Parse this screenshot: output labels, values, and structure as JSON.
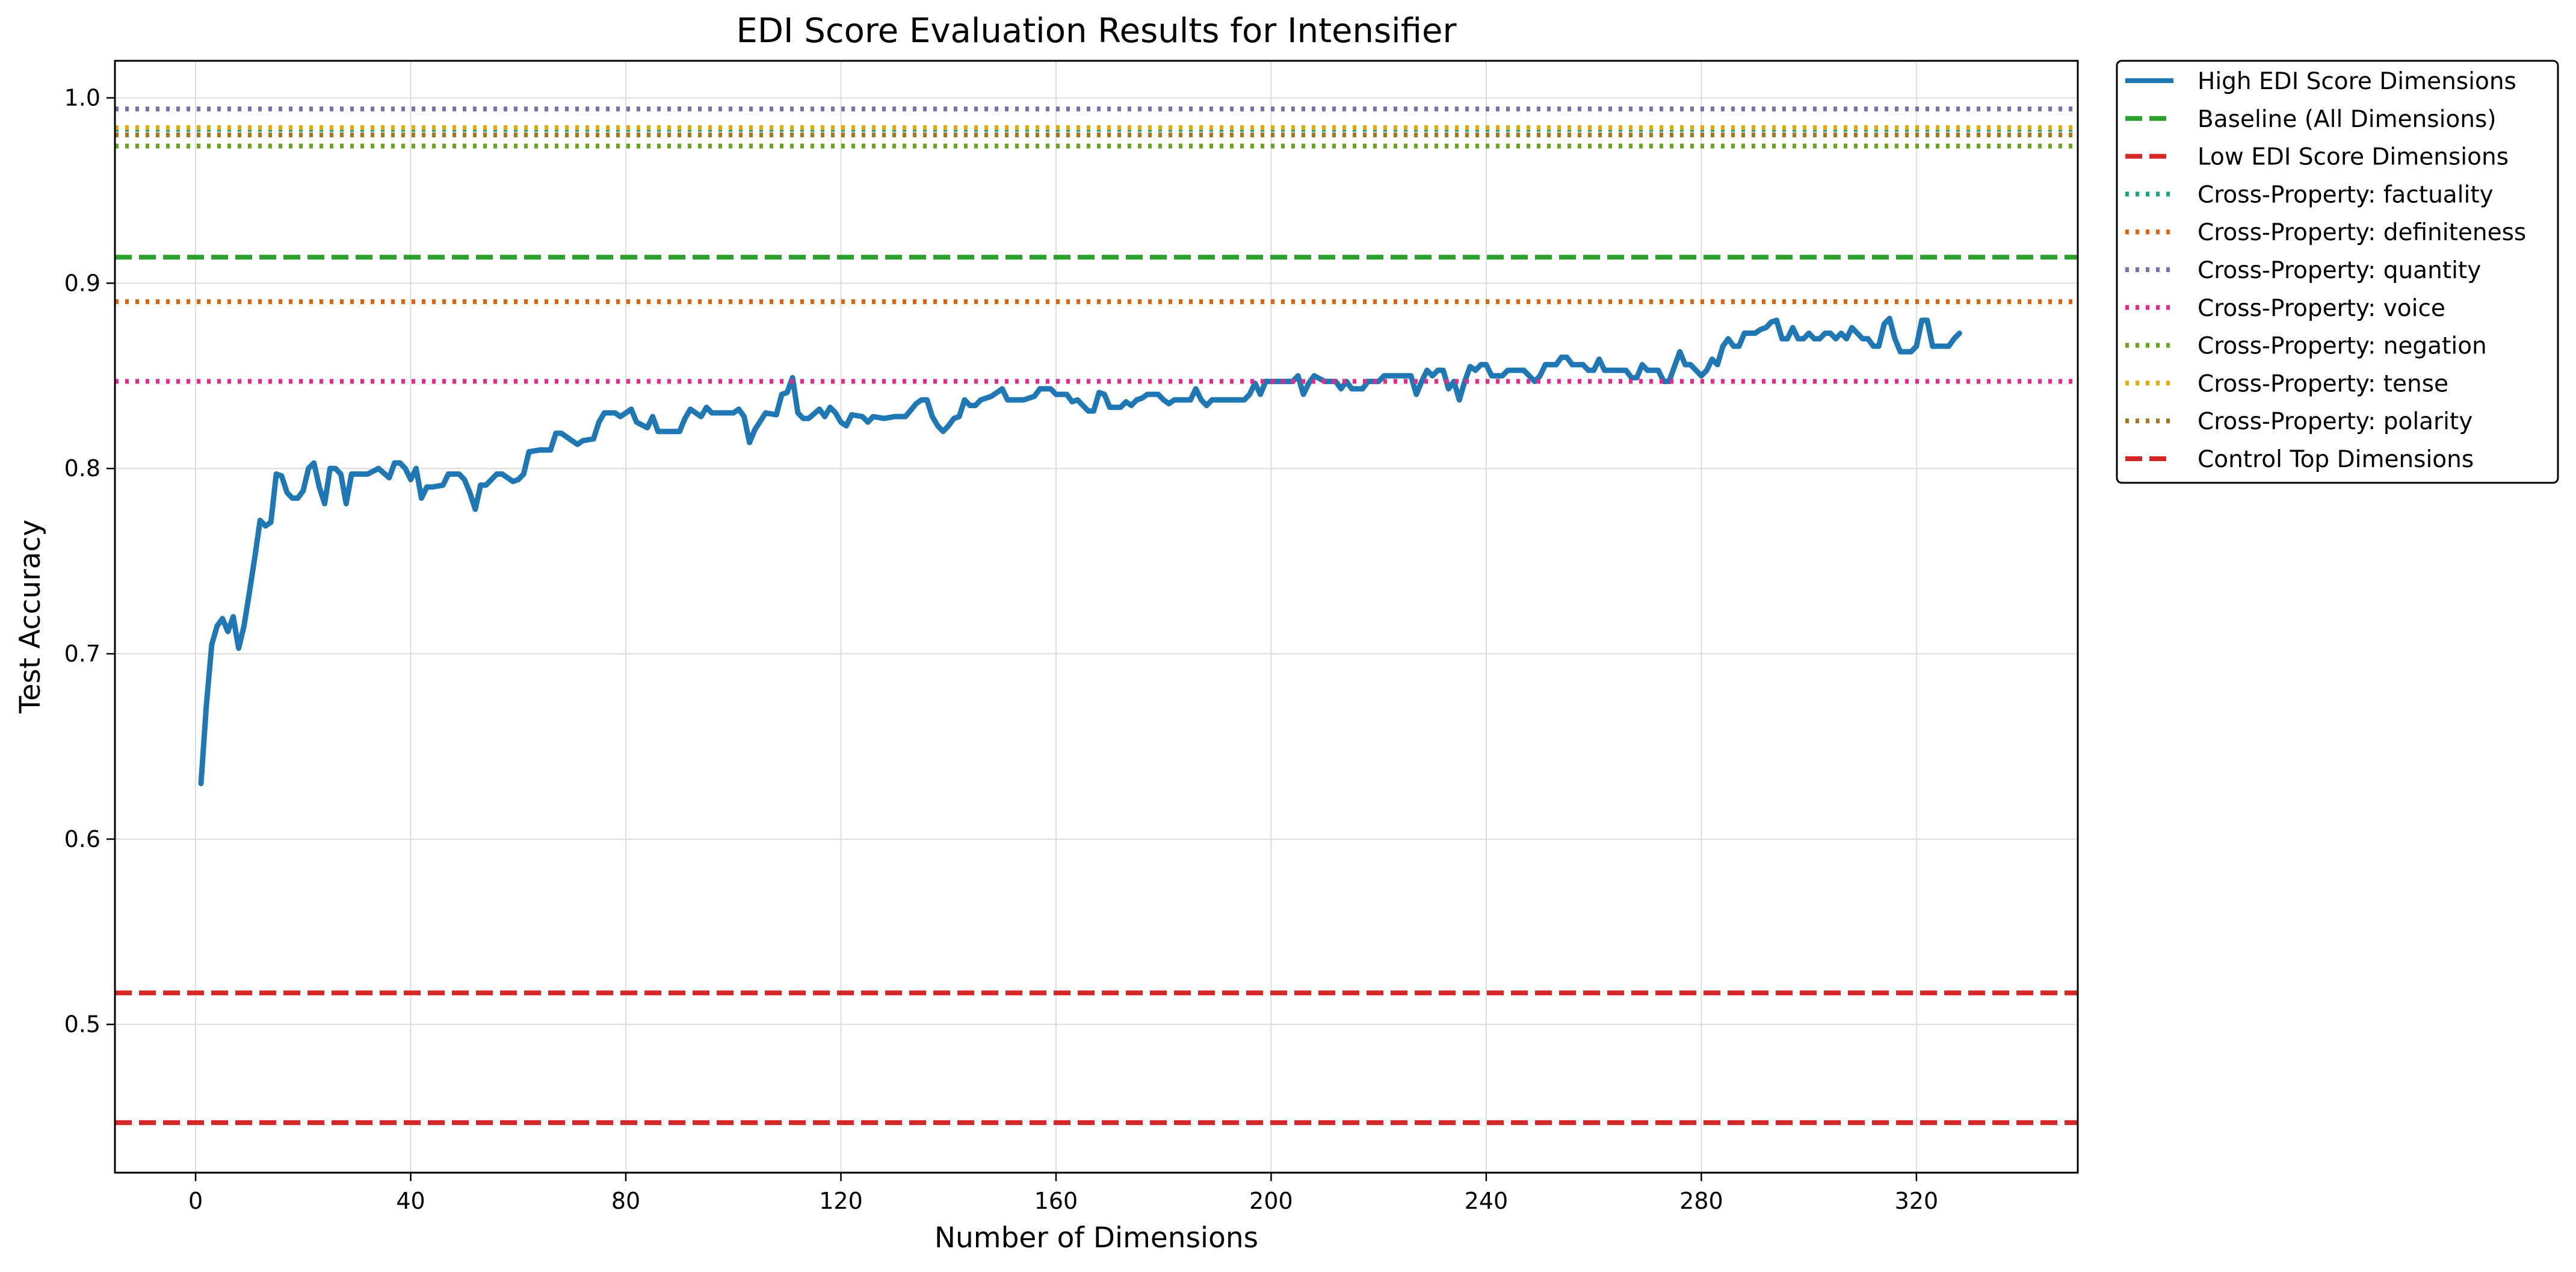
{
  "chart_data": {
    "type": "line",
    "title": "EDI Score Evaluation Results for Intensifier",
    "xlabel": "Number of Dimensions",
    "ylabel": "Test Accuracy",
    "xlim": [
      -15,
      350
    ],
    "ylim": [
      0.42,
      1.02
    ],
    "xticks": [
      0,
      40,
      80,
      120,
      160,
      200,
      240,
      280,
      320
    ],
    "yticks": [
      0.5,
      0.6,
      0.7,
      0.8,
      0.9,
      1.0
    ],
    "xtick_labels": [
      "0",
      "40",
      "80",
      "120",
      "160",
      "200",
      "240",
      "280",
      "320"
    ],
    "ytick_labels": [
      "0.5",
      "0.6",
      "0.7",
      "0.8",
      "0.9",
      "1.0"
    ],
    "grid": true,
    "legend_position": "outside upper right",
    "series": [
      {
        "name": "High EDI Score Dimensions",
        "color": "#1f77b4",
        "style": "solid",
        "points": [
          [
            1,
            0.63
          ],
          [
            2,
            0.672
          ],
          [
            3,
            0.705
          ],
          [
            4,
            0.715
          ],
          [
            5,
            0.719
          ],
          [
            6,
            0.712
          ],
          [
            7,
            0.72
          ],
          [
            8,
            0.703
          ],
          [
            9,
            0.715
          ],
          [
            10,
            0.733
          ],
          [
            11,
            0.752
          ],
          [
            12,
            0.772
          ],
          [
            13,
            0.769
          ],
          [
            14,
            0.771
          ],
          [
            15,
            0.797
          ],
          [
            16,
            0.796
          ],
          [
            17,
            0.787
          ],
          [
            18,
            0.784
          ],
          [
            19,
            0.784
          ],
          [
            20,
            0.788
          ],
          [
            21,
            0.8
          ],
          [
            22,
            0.803
          ],
          [
            23,
            0.79
          ],
          [
            24,
            0.781
          ],
          [
            25,
            0.8
          ],
          [
            26,
            0.8
          ],
          [
            27,
            0.797
          ],
          [
            28,
            0.781
          ],
          [
            29,
            0.797
          ],
          [
            30,
            0.797
          ],
          [
            32,
            0.797
          ],
          [
            34,
            0.8
          ],
          [
            36,
            0.795
          ],
          [
            37,
            0.803
          ],
          [
            38,
            0.803
          ],
          [
            39,
            0.8
          ],
          [
            40,
            0.794
          ],
          [
            41,
            0.8
          ],
          [
            42,
            0.784
          ],
          [
            43,
            0.79
          ],
          [
            44,
            0.79
          ],
          [
            46,
            0.791
          ],
          [
            47,
            0.797
          ],
          [
            48,
            0.797
          ],
          [
            49,
            0.797
          ],
          [
            50,
            0.794
          ],
          [
            51,
            0.787
          ],
          [
            52,
            0.778
          ],
          [
            53,
            0.791
          ],
          [
            54,
            0.791
          ],
          [
            56,
            0.797
          ],
          [
            57,
            0.797
          ],
          [
            58,
            0.795
          ],
          [
            59,
            0.793
          ],
          [
            60,
            0.794
          ],
          [
            61,
            0.797
          ],
          [
            62,
            0.809
          ],
          [
            64,
            0.81
          ],
          [
            66,
            0.81
          ],
          [
            67,
            0.819
          ],
          [
            68,
            0.819
          ],
          [
            70,
            0.815
          ],
          [
            71,
            0.813
          ],
          [
            72,
            0.815
          ],
          [
            74,
            0.816
          ],
          [
            75,
            0.825
          ],
          [
            76,
            0.83
          ],
          [
            78,
            0.83
          ],
          [
            79,
            0.828
          ],
          [
            80,
            0.83
          ],
          [
            81,
            0.832
          ],
          [
            82,
            0.825
          ],
          [
            84,
            0.822
          ],
          [
            85,
            0.828
          ],
          [
            86,
            0.82
          ],
          [
            90,
            0.82
          ],
          [
            91,
            0.827
          ],
          [
            92,
            0.832
          ],
          [
            93,
            0.83
          ],
          [
            94,
            0.828
          ],
          [
            95,
            0.833
          ],
          [
            96,
            0.83
          ],
          [
            98,
            0.83
          ],
          [
            100,
            0.83
          ],
          [
            101,
            0.832
          ],
          [
            102,
            0.828
          ],
          [
            103,
            0.814
          ],
          [
            104,
            0.821
          ],
          [
            106,
            0.83
          ],
          [
            108,
            0.829
          ],
          [
            109,
            0.84
          ],
          [
            110,
            0.841
          ],
          [
            111,
            0.849
          ],
          [
            112,
            0.83
          ],
          [
            113,
            0.827
          ],
          [
            114,
            0.827
          ],
          [
            116,
            0.832
          ],
          [
            117,
            0.828
          ],
          [
            118,
            0.833
          ],
          [
            119,
            0.83
          ],
          [
            120,
            0.825
          ],
          [
            121,
            0.823
          ],
          [
            122,
            0.829
          ],
          [
            124,
            0.828
          ],
          [
            125,
            0.825
          ],
          [
            126,
            0.828
          ],
          [
            128,
            0.827
          ],
          [
            130,
            0.828
          ],
          [
            132,
            0.828
          ],
          [
            134,
            0.835
          ],
          [
            135,
            0.837
          ],
          [
            136,
            0.837
          ],
          [
            137,
            0.828
          ],
          [
            138,
            0.823
          ],
          [
            139,
            0.82
          ],
          [
            140,
            0.823
          ],
          [
            141,
            0.827
          ],
          [
            142,
            0.828
          ],
          [
            143,
            0.837
          ],
          [
            144,
            0.834
          ],
          [
            145,
            0.834
          ],
          [
            146,
            0.837
          ],
          [
            148,
            0.839
          ],
          [
            150,
            0.843
          ],
          [
            151,
            0.837
          ],
          [
            152,
            0.837
          ],
          [
            154,
            0.837
          ],
          [
            156,
            0.839
          ],
          [
            157,
            0.843
          ],
          [
            159,
            0.843
          ],
          [
            160,
            0.84
          ],
          [
            162,
            0.84
          ],
          [
            163,
            0.836
          ],
          [
            164,
            0.837
          ],
          [
            165,
            0.834
          ],
          [
            166,
            0.831
          ],
          [
            167,
            0.831
          ],
          [
            168,
            0.841
          ],
          [
            169,
            0.84
          ],
          [
            170,
            0.833
          ],
          [
            172,
            0.833
          ],
          [
            173,
            0.836
          ],
          [
            174,
            0.834
          ],
          [
            175,
            0.837
          ],
          [
            176,
            0.838
          ],
          [
            177,
            0.84
          ],
          [
            179,
            0.84
          ],
          [
            180,
            0.837
          ],
          [
            181,
            0.835
          ],
          [
            182,
            0.837
          ],
          [
            184,
            0.837
          ],
          [
            185,
            0.837
          ],
          [
            186,
            0.843
          ],
          [
            187,
            0.837
          ],
          [
            188,
            0.834
          ],
          [
            189,
            0.837
          ],
          [
            191,
            0.837
          ],
          [
            193,
            0.837
          ],
          [
            195,
            0.837
          ],
          [
            196,
            0.84
          ],
          [
            197,
            0.846
          ],
          [
            198,
            0.84
          ],
          [
            199,
            0.847
          ],
          [
            201,
            0.847
          ],
          [
            203,
            0.847
          ],
          [
            204,
            0.847
          ],
          [
            205,
            0.85
          ],
          [
            206,
            0.84
          ],
          [
            207,
            0.846
          ],
          [
            208,
            0.85
          ],
          [
            210,
            0.847
          ],
          [
            212,
            0.847
          ],
          [
            213,
            0.843
          ],
          [
            214,
            0.847
          ],
          [
            215,
            0.843
          ],
          [
            217,
            0.843
          ],
          [
            218,
            0.847
          ],
          [
            220,
            0.847
          ],
          [
            221,
            0.85
          ],
          [
            223,
            0.85
          ],
          [
            224,
            0.85
          ],
          [
            225,
            0.85
          ],
          [
            226,
            0.85
          ],
          [
            227,
            0.84
          ],
          [
            228,
            0.847
          ],
          [
            229,
            0.853
          ],
          [
            230,
            0.85
          ],
          [
            231,
            0.853
          ],
          [
            232,
            0.853
          ],
          [
            233,
            0.843
          ],
          [
            234,
            0.847
          ],
          [
            235,
            0.837
          ],
          [
            236,
            0.847
          ],
          [
            237,
            0.855
          ],
          [
            238,
            0.853
          ],
          [
            239,
            0.856
          ],
          [
            240,
            0.856
          ],
          [
            241,
            0.85
          ],
          [
            243,
            0.85
          ],
          [
            244,
            0.853
          ],
          [
            245,
            0.853
          ],
          [
            247,
            0.853
          ],
          [
            249,
            0.847
          ],
          [
            250,
            0.85
          ],
          [
            251,
            0.856
          ],
          [
            253,
            0.856
          ],
          [
            254,
            0.86
          ],
          [
            255,
            0.86
          ],
          [
            256,
            0.856
          ],
          [
            258,
            0.856
          ],
          [
            259,
            0.853
          ],
          [
            260,
            0.853
          ],
          [
            261,
            0.859
          ],
          [
            262,
            0.853
          ],
          [
            264,
            0.853
          ],
          [
            266,
            0.853
          ],
          [
            267,
            0.849
          ],
          [
            268,
            0.849
          ],
          [
            269,
            0.856
          ],
          [
            270,
            0.853
          ],
          [
            272,
            0.853
          ],
          [
            273,
            0.847
          ],
          [
            274,
            0.847
          ],
          [
            275,
            0.855
          ],
          [
            276,
            0.863
          ],
          [
            277,
            0.856
          ],
          [
            278,
            0.856
          ],
          [
            279,
            0.853
          ],
          [
            280,
            0.85
          ],
          [
            281,
            0.853
          ],
          [
            282,
            0.859
          ],
          [
            283,
            0.856
          ],
          [
            284,
            0.866
          ],
          [
            285,
            0.87
          ],
          [
            286,
            0.866
          ],
          [
            287,
            0.866
          ],
          [
            288,
            0.873
          ],
          [
            290,
            0.873
          ],
          [
            291,
            0.875
          ],
          [
            292,
            0.876
          ],
          [
            293,
            0.879
          ],
          [
            294,
            0.88
          ],
          [
            295,
            0.87
          ],
          [
            296,
            0.87
          ],
          [
            297,
            0.876
          ],
          [
            298,
            0.87
          ],
          [
            299,
            0.87
          ],
          [
            300,
            0.873
          ],
          [
            301,
            0.87
          ],
          [
            302,
            0.87
          ],
          [
            303,
            0.873
          ],
          [
            304,
            0.873
          ],
          [
            305,
            0.87
          ],
          [
            306,
            0.873
          ],
          [
            307,
            0.87
          ],
          [
            308,
            0.876
          ],
          [
            309,
            0.873
          ],
          [
            310,
            0.87
          ],
          [
            311,
            0.87
          ],
          [
            312,
            0.866
          ],
          [
            313,
            0.866
          ],
          [
            314,
            0.878
          ],
          [
            315,
            0.881
          ],
          [
            316,
            0.87
          ],
          [
            317,
            0.863
          ],
          [
            318,
            0.863
          ],
          [
            319,
            0.863
          ],
          [
            320,
            0.866
          ],
          [
            321,
            0.88
          ],
          [
            322,
            0.88
          ],
          [
            323,
            0.866
          ],
          [
            324,
            0.866
          ],
          [
            325,
            0.866
          ],
          [
            326,
            0.866
          ],
          [
            327,
            0.87
          ],
          [
            328,
            0.873
          ]
        ]
      },
      {
        "name": "Baseline (All Dimensions)",
        "color": "#2ca02c",
        "style": "dashed",
        "y": 0.914
      },
      {
        "name": "Low EDI Score Dimensions",
        "color": "#d62728",
        "style": "dashed",
        "y": 0.517
      },
      {
        "name": "Cross-Property: factuality",
        "color": "#17a683",
        "style": "dotted",
        "y": 0.983
      },
      {
        "name": "Cross-Property: definiteness",
        "color": "#e0620c",
        "style": "dotted",
        "y": 0.89
      },
      {
        "name": "Cross-Property: quantity",
        "color": "#7570b3",
        "style": "dotted",
        "y": 0.994
      },
      {
        "name": "Cross-Property: voice",
        "color": "#e7298a",
        "style": "dotted",
        "y": 0.847
      },
      {
        "name": "Cross-Property: negation",
        "color": "#66a61e",
        "style": "dotted",
        "y": 0.974
      },
      {
        "name": "Cross-Property: tense",
        "color": "#e6ab02",
        "style": "dotted",
        "y": 0.984
      },
      {
        "name": "Cross-Property: polarity",
        "color": "#a6761d",
        "style": "dotted",
        "y": 0.98
      },
      {
        "name": "Control Top Dimensions",
        "color": "#d62728",
        "style": "dashed",
        "y": 0.447
      }
    ]
  }
}
